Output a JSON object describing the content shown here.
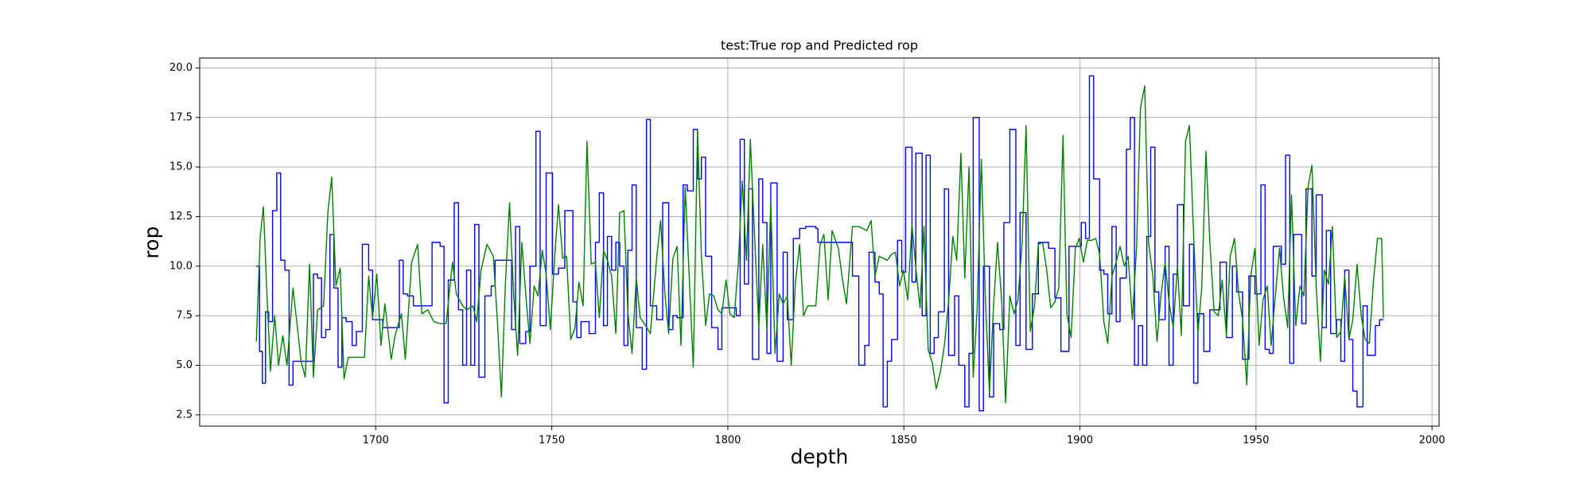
{
  "chart_data": {
    "type": "line",
    "title": "test:True rop and Predicted rop",
    "xlabel": "depth",
    "ylabel": "rop",
    "xlim": [
      1650,
      2002
    ],
    "ylim": [
      1.93,
      20.5
    ],
    "xticks": [
      1700,
      1750,
      1800,
      1850,
      1900,
      1950,
      2000
    ],
    "yticks": [
      2.5,
      {
        "value": 5,
        "label": "5.0"
      },
      7.5,
      {
        "value": 10,
        "label": "10.0"
      },
      12.5,
      {
        "value": 15,
        "label": "15.0"
      },
      17.5,
      {
        "value": 20,
        "label": "20.0"
      }
    ],
    "grid": true,
    "series": [
      {
        "color": "#0000ff",
        "drawstyle": "steps-post",
        "x": [
          1666.1,
          1667.0,
          1667.8,
          1668.7,
          1669.6,
          1670.7,
          1671.9,
          1673.0,
          1674.2,
          1675.4,
          1676.5,
          1680.0,
          1682.3,
          1683.5,
          1684.6,
          1685.8,
          1687.0,
          1688.1,
          1689.3,
          1690.4,
          1691.6,
          1693.3,
          1694.5,
          1696.2,
          1698.0,
          1699.1,
          1700.3,
          1702.0,
          1706.1,
          1706.7,
          1707.8,
          1709.0,
          1710.7,
          1716.0,
          1718.3,
          1719.4,
          1720.6,
          1722.3,
          1723.5,
          1724.7,
          1725.8,
          1727.0,
          1728.1,
          1729.3,
          1731.0,
          1732.8,
          1733.9,
          1738.0,
          1738.6,
          1739.7,
          1740.9,
          1742.6,
          1743.8,
          1745.5,
          1746.7,
          1748.4,
          1750.2,
          1751.9,
          1753.7,
          1756.0,
          1757.1,
          1758.3,
          1760.6,
          1762.4,
          1763.5,
          1764.7,
          1765.8,
          1767.0,
          1768.2,
          1769.3,
          1770.5,
          1771.6,
          1772.8,
          1774.0,
          1775.7,
          1776.9,
          1778.0,
          1779.8,
          1781.5,
          1783.2,
          1784.4,
          1785.6,
          1787.3,
          1788.5,
          1790.2,
          1791.4,
          1792.5,
          1793.7,
          1795.4,
          1797.2,
          1798.3,
          1802.4,
          1803.5,
          1804.7,
          1805.9,
          1807.0,
          1808.8,
          1809.9,
          1811.1,
          1812.2,
          1814.0,
          1815.7,
          1816.9,
          1818.6,
          1820.4,
          1822.1,
          1825.0,
          1825.6,
          1833.7,
          1835.4,
          1837.2,
          1838.9,
          1840.1,
          1841.8,
          1843.0,
          1844.1,
          1845.3,
          1846.5,
          1848.2,
          1849.4,
          1850.5,
          1852.3,
          1853.4,
          1855.2,
          1856.3,
          1857.5,
          1858.6,
          1859.8,
          1861.5,
          1862.7,
          1864.4,
          1865.6,
          1867.3,
          1868.5,
          1869.7,
          1871.4,
          1872.6,
          1874.3,
          1875.5,
          1877.2,
          1878.4,
          1880.1,
          1881.8,
          1883.0,
          1884.7,
          1886.5,
          1888.2,
          1891.1,
          1892.9,
          1894.6,
          1896.9,
          1900.4,
          1901.6,
          1902.7,
          1903.9,
          1905.6,
          1906.8,
          1907.9,
          1909.1,
          1910.3,
          1911.4,
          1913.2,
          1914.3,
          1915.5,
          1916.6,
          1917.8,
          1919.0,
          1920.1,
          1921.3,
          1922.4,
          1924.2,
          1925.3,
          1926.5,
          1927.7,
          1929.4,
          1931.1,
          1932.3,
          1933.5,
          1935.2,
          1936.9,
          1938.1,
          1939.8,
          1941.6,
          1943.3,
          1944.5,
          1946.2,
          1948.0,
          1949.7,
          1951.4,
          1952.6,
          1953.8,
          1954.9,
          1957.2,
          1958.4,
          1959.6,
          1960.7,
          1963.0,
          1964.2,
          1965.9,
          1967.1,
          1968.8,
          1970.0,
          1971.2,
          1972.9,
          1974.1,
          1975.2,
          1976.4,
          1977.5,
          1978.7,
          1980.4,
          1981.6,
          1983.9,
          1985.1,
          1986.2
        ],
        "values": [
          10.0,
          5.7,
          4.1,
          7.7,
          7.2,
          12.8,
          14.7,
          10.3,
          9.8,
          4.0,
          5.2,
          5.2,
          9.6,
          9.4,
          6.4,
          6.8,
          11.6,
          8.9,
          4.9,
          7.4,
          7.2,
          6.0,
          6.7,
          11.1,
          9.8,
          7.3,
          7.3,
          6.9,
          6.9,
          10.3,
          8.6,
          8.5,
          8.0,
          11.2,
          11.0,
          3.1,
          9.3,
          13.2,
          7.8,
          5.0,
          9.8,
          5.0,
          12.1,
          4.4,
          8.5,
          9.0,
          10.3,
          10.3,
          6.8,
          12.0,
          6.1,
          6.7,
          10.0,
          16.8,
          7.0,
          14.7,
          9.6,
          9.9,
          12.8,
          8.2,
          6.4,
          7.2,
          6.6,
          11.2,
          13.7,
          7.0,
          11.5,
          9.8,
          11.2,
          10.0,
          6.0,
          10.8,
          14.1,
          6.9,
          4.8,
          17.4,
          8.0,
          7.3,
          13.2,
          6.8,
          7.5,
          7.4,
          14.1,
          13.8,
          16.9,
          14.4,
          15.5,
          10.5,
          6.9,
          5.8,
          7.9,
          7.5,
          16.4,
          9.1,
          13.9,
          5.3,
          14.4,
          12.2,
          5.6,
          14.2,
          5.2,
          10.7,
          7.3,
          11.4,
          11.9,
          12.0,
          11.9,
          11.2,
          11.2,
          9.5,
          5.0,
          6.0,
          10.7,
          9.2,
          8.6,
          2.9,
          5.2,
          6.3,
          11.3,
          9.7,
          16.0,
          9.2,
          15.7,
          7.5,
          15.6,
          5.6,
          6.4,
          7.7,
          13.9,
          5.5,
          8.5,
          5.0,
          2.9,
          5.6,
          17.5,
          2.7,
          10.0,
          3.4,
          7.1,
          6.8,
          12.2,
          16.9,
          6.0,
          12.7,
          5.8,
          8.6,
          11.2,
          10.9,
          8.4,
          5.7,
          11.0,
          12.2,
          11.4,
          19.6,
          14.4,
          9.8,
          9.6,
          7.6,
          12.0,
          7.2,
          9.4,
          15.9,
          17.5,
          5.0,
          7.0,
          5.0,
          11.5,
          16.0,
          8.7,
          7.3,
          11.0,
          5.0,
          9.6,
          13.1,
          8.0,
          11.1,
          4.1,
          7.6,
          5.7,
          7.8,
          7.8,
          10.2,
          6.4,
          10.0,
          8.7,
          5.3,
          9.5,
          8.6,
          14.1,
          5.8,
          5.6,
          11.0,
          10.1,
          15.6,
          5.1,
          11.6,
          7.1,
          13.9,
          9.5,
          13.6,
          6.9,
          11.8,
          6.6,
          7.3,
          5.2,
          9.8,
          6.3,
          3.7,
          2.9,
          8.0,
          5.5,
          7.0,
          7.3,
          7.3
        ]
      },
      {
        "color": "#008000",
        "x": [
          1666.1,
          1667.2,
          1668.1,
          1669.0,
          1670.1,
          1671.3,
          1672.4,
          1673.6,
          1674.8,
          1676.5,
          1677.7,
          1678.8,
          1680.0,
          1681.2,
          1682.3,
          1683.5,
          1685.2,
          1686.4,
          1687.5,
          1688.7,
          1689.9,
          1691.0,
          1692.2,
          1696.8,
          1698.0,
          1699.1,
          1700.3,
          1701.5,
          1702.6,
          1704.4,
          1705.5,
          1707.3,
          1708.4,
          1710.2,
          1711.9,
          1713.1,
          1714.8,
          1716.5,
          1718.3,
          1720.0,
          1721.8,
          1722.9,
          1724.7,
          1725.8,
          1727.6,
          1728.7,
          1729.9,
          1731.6,
          1733.4,
          1734.5,
          1735.7,
          1736.8,
          1738.0,
          1739.2,
          1740.3,
          1741.5,
          1742.6,
          1743.8,
          1745.0,
          1746.1,
          1747.3,
          1748.4,
          1749.6,
          1750.8,
          1751.9,
          1753.1,
          1754.2,
          1755.4,
          1756.6,
          1757.7,
          1758.9,
          1760.0,
          1761.2,
          1762.4,
          1763.5,
          1764.7,
          1765.8,
          1767.0,
          1768.2,
          1769.3,
          1770.5,
          1771.6,
          1772.8,
          1774.0,
          1775.1,
          1776.3,
          1778.0,
          1779.8,
          1780.9,
          1782.1,
          1783.2,
          1784.4,
          1785.6,
          1786.7,
          1787.9,
          1789.0,
          1790.2,
          1791.4,
          1792.5,
          1793.7,
          1794.8,
          1796.0,
          1797.2,
          1798.3,
          1799.5,
          1800.6,
          1801.8,
          1803.0,
          1804.1,
          1805.3,
          1806.4,
          1807.6,
          1808.8,
          1809.9,
          1811.1,
          1812.2,
          1813.4,
          1814.6,
          1815.7,
          1816.9,
          1818.0,
          1819.2,
          1820.4,
          1821.5,
          1822.7,
          1825.0,
          1826.2,
          1827.3,
          1828.5,
          1829.6,
          1831.4,
          1832.5,
          1833.7,
          1835.4,
          1837.2,
          1838.3,
          1839.5,
          1840.7,
          1841.8,
          1843.0,
          1844.1,
          1845.3,
          1846.5,
          1847.6,
          1848.8,
          1849.9,
          1851.1,
          1852.3,
          1853.4,
          1854.6,
          1855.7,
          1856.9,
          1858.1,
          1859.2,
          1860.4,
          1861.5,
          1862.7,
          1863.9,
          1865.0,
          1866.2,
          1867.3,
          1868.5,
          1869.7,
          1870.8,
          1872.0,
          1873.1,
          1874.3,
          1875.5,
          1876.6,
          1877.8,
          1878.9,
          1880.1,
          1881.3,
          1882.4,
          1883.6,
          1884.7,
          1885.9,
          1887.1,
          1888.2,
          1889.4,
          1890.5,
          1891.7,
          1892.9,
          1894.0,
          1895.2,
          1896.3,
          1897.5,
          1898.7,
          1899.8,
          1901.0,
          1902.1,
          1903.3,
          1904.5,
          1905.6,
          1906.8,
          1907.9,
          1909.1,
          1910.3,
          1911.4,
          1912.6,
          1913.7,
          1914.9,
          1916.1,
          1917.2,
          1918.4,
          1919.5,
          1920.7,
          1921.9,
          1923.0,
          1924.2,
          1925.3,
          1926.5,
          1927.7,
          1928.8,
          1930.0,
          1931.1,
          1932.3,
          1933.5,
          1934.6,
          1935.8,
          1936.9,
          1938.1,
          1939.3,
          1940.4,
          1941.6,
          1942.7,
          1943.9,
          1945.1,
          1946.2,
          1947.4,
          1948.5,
          1949.7,
          1950.9,
          1952.0,
          1953.2,
          1954.3,
          1955.5,
          1956.7,
          1957.8,
          1959.0,
          1960.1,
          1961.3,
          1962.5,
          1963.6,
          1964.8,
          1965.9,
          1967.1,
          1968.3,
          1969.4,
          1970.6,
          1971.7,
          1972.9,
          1974.1,
          1975.2,
          1976.4,
          1977.5,
          1978.7,
          1979.9,
          1981.0,
          1982.2,
          1983.3,
          1984.5,
          1985.7,
          1986.2
        ],
        "values": [
          6.2,
          11.5,
          13.0,
          9.0,
          4.7,
          7.5,
          5.0,
          6.5,
          5.0,
          8.9,
          7.0,
          5.2,
          4.4,
          10.1,
          4.4,
          7.8,
          8.0,
          12.7,
          14.5,
          9.0,
          9.9,
          4.3,
          5.4,
          5.4,
          9.5,
          7.4,
          9.6,
          6.0,
          8.1,
          5.3,
          6.5,
          7.6,
          5.3,
          10.2,
          11.1,
          7.6,
          7.8,
          7.2,
          7.1,
          7.1,
          10.2,
          8.6,
          8.0,
          7.8,
          8.0,
          7.2,
          9.8,
          11.1,
          10.5,
          7.4,
          3.4,
          9.0,
          13.2,
          8.5,
          5.5,
          11.2,
          8.6,
          6.1,
          9.0,
          8.5,
          10.8,
          9.6,
          6.8,
          10.4,
          13.1,
          10.4,
          10.5,
          6.3,
          6.9,
          9.2,
          8.0,
          16.3,
          10.1,
          10.2,
          7.4,
          10.8,
          10.3,
          9.5,
          6.6,
          12.7,
          12.8,
          7.7,
          5.6,
          9.4,
          7.4,
          7.1,
          6.6,
          10.4,
          12.3,
          8.7,
          6.6,
          10.4,
          11.0,
          6.0,
          14.0,
          9.6,
          4.9,
          16.9,
          10.5,
          7.0,
          8.6,
          8.5,
          7.8,
          7.6,
          9.3,
          7.6,
          7.4,
          10.2,
          14.3,
          10.3,
          16.4,
          11.5,
          6.9,
          11.1,
          6.8,
          13.2,
          5.6,
          8.6,
          8.1,
          8.5,
          5.0,
          9.2,
          11.1,
          7.5,
          8.0,
          8.0,
          11.1,
          11.6,
          8.3,
          11.8,
          10.9,
          9.4,
          8.1,
          12.0,
          12.0,
          11.9,
          11.8,
          12.3,
          9.5,
          10.5,
          10.4,
          10.3,
          10.6,
          10.7,
          9.0,
          9.8,
          8.3,
          12.1,
          9.9,
          7.9,
          12.0,
          5.8,
          5.1,
          3.8,
          4.7,
          6.0,
          8.2,
          11.5,
          10.3,
          15.7,
          9.4,
          15.0,
          4.4,
          7.8,
          15.4,
          8.6,
          3.6,
          8.1,
          11.2,
          8.2,
          3.1,
          8.5,
          7.6,
          8.3,
          11.2,
          17.1,
          6.7,
          8.0,
          11.1,
          11.2,
          9.9,
          7.9,
          8.2,
          8.9,
          16.6,
          7.6,
          6.4,
          10.9,
          11.4,
          10.2,
          11.3,
          11.3,
          11.4,
          10.6,
          7.2,
          6.1,
          9.5,
          10.2,
          11.0,
          10.0,
          10.5,
          7.3,
          11.0,
          18.0,
          19.1,
          11.2,
          9.5,
          6.2,
          8.5,
          10.2,
          8.2,
          6.9,
          10.0,
          6.5,
          16.3,
          17.1,
          11.5,
          6.6,
          8.9,
          15.8,
          11.2,
          7.7,
          7.5,
          9.3,
          6.5,
          10.5,
          11.4,
          8.6,
          7.3,
          4.0,
          9.5,
          10.9,
          6.0,
          8.3,
          9.0,
          6.0,
          8.5,
          10.9,
          8.5,
          6.9,
          13.6,
          7.0,
          9.0,
          8.5,
          14.0,
          15.1,
          9.0,
          5.2,
          9.8,
          9.1,
          12.0,
          6.4,
          6.7,
          9.5,
          6.3,
          7.3,
          10.1,
          7.5,
          6.3,
          6.1,
          9.1,
          11.4,
          11.4,
          7.4
        ]
      }
    ]
  }
}
